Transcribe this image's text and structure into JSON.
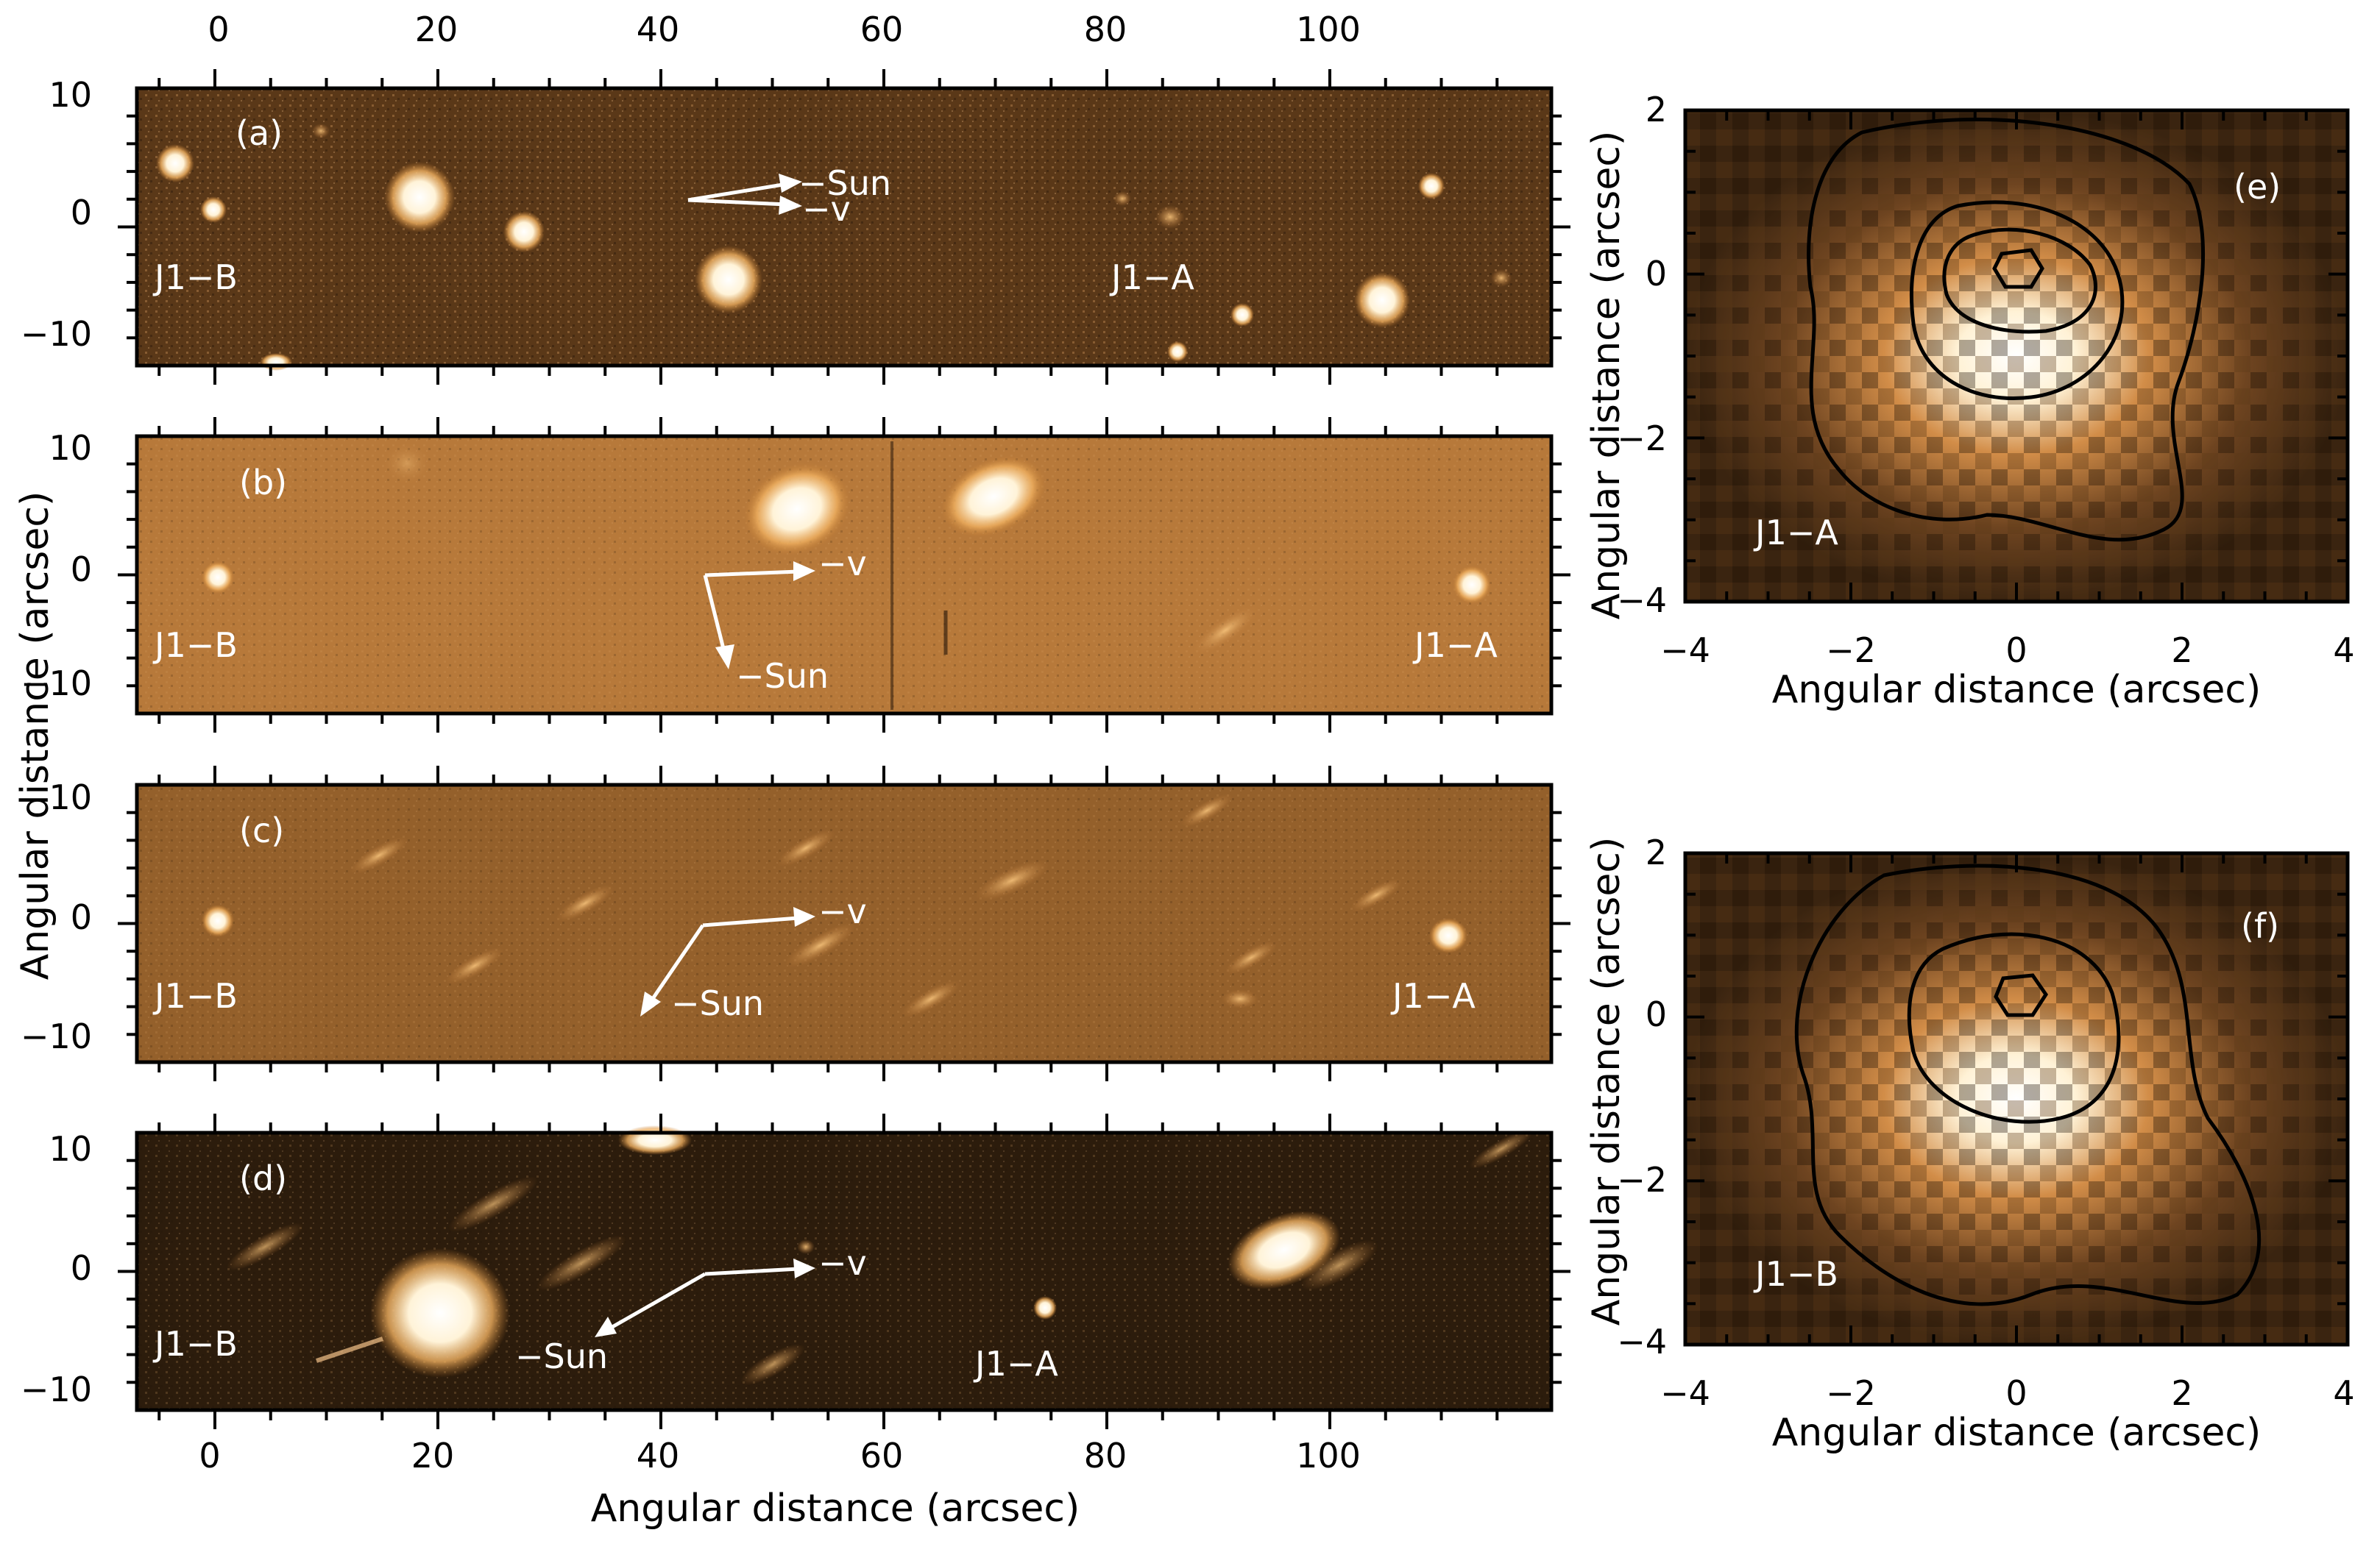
{
  "colors": {
    "panel_a_bg": "#5a3818",
    "panel_b_bg": "#b7793a",
    "panel_c_bg": "#94602b",
    "panel_d_bg": "#2c1c0c",
    "panel_ef_bg": "#3a2410",
    "source": "#fff6e0",
    "glow": "#f2b264"
  },
  "left_panels": {
    "top_axis_ticks": [
      "0",
      "20",
      "40",
      "60",
      "80",
      "100"
    ],
    "bottom_axis_ticks": [
      "0",
      "20",
      "40",
      "60",
      "80",
      "100"
    ],
    "x_axis_label": "Angular distance (arcsec)",
    "y_axis_label": "Angular distance (arcsec)",
    "y_ticks": [
      "10",
      "0",
      "−10"
    ],
    "panels": [
      {
        "id": "a",
        "label": "(a)",
        "left_object": "J1−B",
        "right_object": "J1−A",
        "sun_label": "−Sun",
        "v_label": "−v"
      },
      {
        "id": "b",
        "label": "(b)",
        "left_object": "J1−B",
        "right_object": "J1−A",
        "sun_label": "−Sun",
        "v_label": "−v"
      },
      {
        "id": "c",
        "label": "(c)",
        "left_object": "J1−B",
        "right_object": "J1−A",
        "sun_label": "−Sun",
        "v_label": "−v"
      },
      {
        "id": "d",
        "label": "(d)",
        "left_object": "J1−B",
        "right_object": "J1−A",
        "sun_label": "−Sun",
        "v_label": "−v"
      }
    ]
  },
  "right_panels": {
    "x_ticks": [
      "−4",
      "−2",
      "0",
      "2",
      "4"
    ],
    "y_ticks": [
      "2",
      "0",
      "−2",
      "−4"
    ],
    "x_axis_label": "Angular distance (arcsec)",
    "y_axis_label": "Angular distance (arcsec)",
    "panels": [
      {
        "id": "e",
        "label": "(e)",
        "object": "J1−A"
      },
      {
        "id": "f",
        "label": "(f)",
        "object": "J1−B"
      }
    ]
  }
}
